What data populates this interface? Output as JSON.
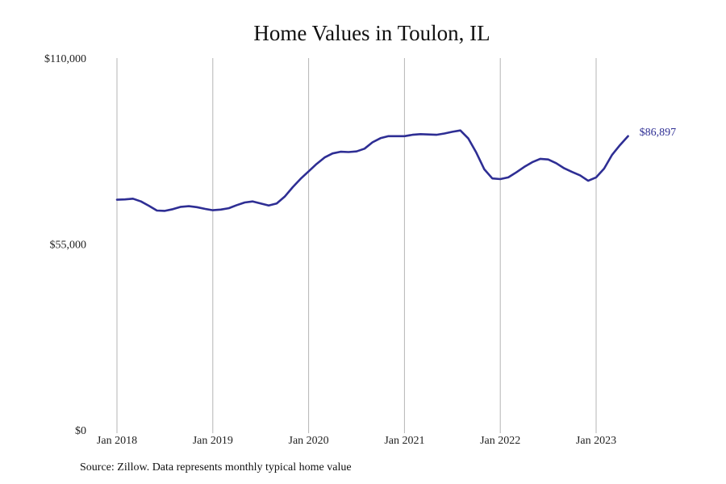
{
  "chart_data": {
    "type": "line",
    "title": "Home Values in Toulon, IL",
    "xlabel": "",
    "ylabel": "",
    "ylim": [
      0,
      110000
    ],
    "y_ticks": [
      {
        "value": 0,
        "label": "$0"
      },
      {
        "value": 55000,
        "label": "$55,000"
      },
      {
        "value": 110000,
        "label": "$110,000"
      }
    ],
    "x_ticks": [
      {
        "value": "2018-01",
        "label": "Jan 2018"
      },
      {
        "value": "2019-01",
        "label": "Jan 2019"
      },
      {
        "value": "2020-01",
        "label": "Jan 2020"
      },
      {
        "value": "2021-01",
        "label": "Jan 2021"
      },
      {
        "value": "2022-01",
        "label": "Jan 2022"
      },
      {
        "value": "2023-01",
        "label": "Jan 2023"
      }
    ],
    "grid": "vertical lines at January of each year",
    "line_color": "#2e2e94",
    "end_label": "$86,897",
    "series": [
      {
        "x": [
          "2018-01",
          "2018-02",
          "2018-03",
          "2018-04",
          "2018-05",
          "2018-06",
          "2018-07",
          "2018-08",
          "2018-09",
          "2018-10",
          "2018-11",
          "2018-12",
          "2019-01",
          "2019-02",
          "2019-03",
          "2019-04",
          "2019-05",
          "2019-06",
          "2019-07",
          "2019-08",
          "2019-09",
          "2019-10",
          "2019-11",
          "2019-12",
          "2020-01",
          "2020-02",
          "2020-03",
          "2020-04",
          "2020-05",
          "2020-06",
          "2020-07",
          "2020-08",
          "2020-09",
          "2020-10",
          "2020-11",
          "2020-12",
          "2021-01",
          "2021-02",
          "2021-03",
          "2021-04",
          "2021-05",
          "2021-06",
          "2021-07",
          "2021-08",
          "2021-09",
          "2021-10",
          "2021-11",
          "2021-12",
          "2022-01",
          "2022-02",
          "2022-03",
          "2022-04",
          "2022-05",
          "2022-06",
          "2022-07",
          "2022-08",
          "2022-09",
          "2022-10",
          "2022-11",
          "2022-12",
          "2023-01",
          "2023-02",
          "2023-03",
          "2023-04",
          "2023-05"
        ],
        "values": [
          68100,
          68200,
          68400,
          67600,
          66300,
          64900,
          64800,
          65300,
          66000,
          66200,
          65900,
          65400,
          65000,
          65200,
          65600,
          66500,
          67300,
          67600,
          67000,
          66400,
          67000,
          69000,
          71800,
          74300,
          76500,
          78700,
          80600,
          81800,
          82300,
          82200,
          82400,
          83200,
          85100,
          86300,
          86900,
          86900,
          86900,
          87300,
          87500,
          87400,
          87300,
          87700,
          88200,
          88600,
          86200,
          82000,
          77100,
          74400,
          74200,
          74700,
          76200,
          77800,
          79200,
          80200,
          80000,
          78900,
          77400,
          76300,
          75300,
          73700,
          74700,
          77300,
          81400,
          84300,
          86897
        ]
      }
    ]
  },
  "footer": {
    "source": "Source: Zillow. Data represents monthly typical home value"
  }
}
